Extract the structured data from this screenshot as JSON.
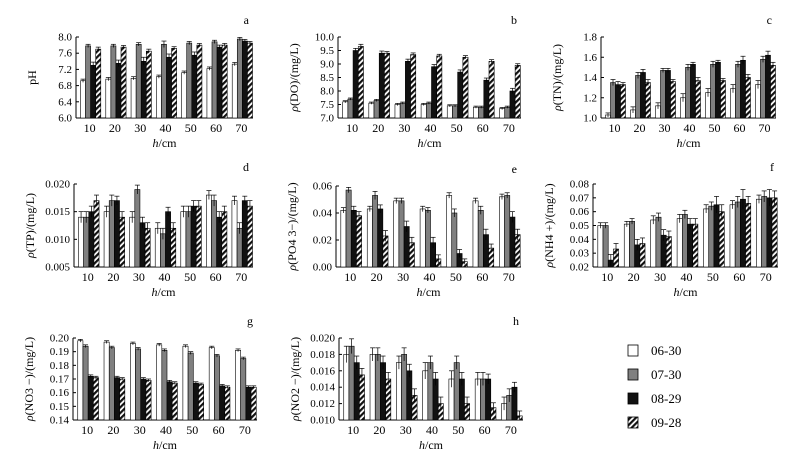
{
  "figure": {
    "legend": [
      {
        "label": "06-30",
        "pattern": "white"
      },
      {
        "label": "07-30",
        "pattern": "gray"
      },
      {
        "label": "08-29",
        "pattern": "black"
      },
      {
        "label": "09-28",
        "pattern": "hatch"
      }
    ],
    "colors": {
      "gray": "#808080",
      "black": "#111111",
      "white": "#ffffff",
      "axis": "#000000"
    }
  },
  "chart_data": [
    {
      "type": "bar",
      "panel_label": "a",
      "ylabel": "pH",
      "xlabel": "h/cm",
      "categories": [
        "10",
        "20",
        "30",
        "40",
        "50",
        "60",
        "70"
      ],
      "ylim": [
        6.0,
        8.0
      ],
      "yticks": [
        "6.0",
        "6.4",
        "6.8",
        "7.2",
        "7.6",
        "8.0"
      ],
      "series": [
        {
          "name": "06-30",
          "values": [
            6.92,
            6.96,
            6.98,
            7.02,
            7.12,
            7.22,
            7.33
          ],
          "errors": [
            0.04,
            0.04,
            0.04,
            0.04,
            0.04,
            0.04,
            0.04
          ]
        },
        {
          "name": "07-30",
          "values": [
            7.78,
            7.78,
            7.82,
            7.82,
            7.85,
            7.88,
            7.95
          ],
          "errors": [
            0.04,
            0.04,
            0.04,
            0.08,
            0.04,
            0.04,
            0.04
          ]
        },
        {
          "name": "08-29",
          "values": [
            7.3,
            7.35,
            7.4,
            7.5,
            7.55,
            7.75,
            7.9
          ],
          "errors": [
            0.08,
            0.08,
            0.1,
            0.08,
            0.08,
            0.05,
            0.04
          ]
        },
        {
          "name": "09-28",
          "values": [
            7.7,
            7.75,
            7.65,
            7.72,
            7.8,
            7.8,
            7.85
          ],
          "errors": [
            0.05,
            0.04,
            0.05,
            0.04,
            0.04,
            0.04,
            0.04
          ]
        }
      ]
    },
    {
      "type": "bar",
      "panel_label": "b",
      "ylabel": "ρ(DO)/(mg/L)",
      "xlabel": "h/cm",
      "categories": [
        "10",
        "20",
        "30",
        "40",
        "50",
        "60",
        "70"
      ],
      "ylim": [
        7.0,
        10.0
      ],
      "yticks": [
        "7.0",
        "7.5",
        "8.0",
        "8.5",
        "9.0",
        "9.5",
        "10.0"
      ],
      "series": [
        {
          "name": "06-30",
          "values": [
            7.6,
            7.55,
            7.5,
            7.5,
            7.45,
            7.4,
            7.35
          ],
          "errors": [
            0.04,
            0.04,
            0.04,
            0.04,
            0.04,
            0.04,
            0.04
          ]
        },
        {
          "name": "07-30",
          "values": [
            7.7,
            7.65,
            7.55,
            7.55,
            7.45,
            7.4,
            7.4
          ],
          "errors": [
            0.04,
            0.04,
            0.04,
            0.04,
            0.04,
            0.04,
            0.04
          ]
        },
        {
          "name": "08-29",
          "values": [
            9.5,
            9.4,
            9.1,
            8.9,
            8.7,
            8.4,
            8.0
          ],
          "errors": [
            0.08,
            0.08,
            0.08,
            0.08,
            0.08,
            0.08,
            0.1
          ]
        },
        {
          "name": "09-28",
          "values": [
            9.65,
            9.4,
            9.35,
            9.3,
            9.25,
            9.1,
            8.95
          ],
          "errors": [
            0.08,
            0.06,
            0.06,
            0.06,
            0.06,
            0.06,
            0.06
          ]
        }
      ]
    },
    {
      "type": "bar",
      "panel_label": "c",
      "ylabel": "ρ(TN)/(mg/L)",
      "xlabel": "h/cm",
      "categories": [
        "10",
        "20",
        "30",
        "40",
        "50",
        "60",
        "70"
      ],
      "ylim": [
        1.0,
        1.8
      ],
      "yticks": [
        "1.0",
        "1.2",
        "1.4",
        "1.6",
        "1.8"
      ],
      "series": [
        {
          "name": "06-30",
          "values": [
            1.03,
            1.08,
            1.12,
            1.2,
            1.25,
            1.29,
            1.33
          ],
          "errors": [
            0.02,
            0.03,
            0.03,
            0.04,
            0.04,
            0.04,
            0.04
          ]
        },
        {
          "name": "07-30",
          "values": [
            1.35,
            1.42,
            1.47,
            1.5,
            1.53,
            1.53,
            1.58
          ],
          "errors": [
            0.03,
            0.03,
            0.02,
            0.03,
            0.03,
            0.03,
            0.03
          ]
        },
        {
          "name": "08-29",
          "values": [
            1.33,
            1.45,
            1.47,
            1.53,
            1.55,
            1.57,
            1.62
          ],
          "errors": [
            0.03,
            0.03,
            0.02,
            0.02,
            0.02,
            0.04,
            0.04
          ]
        },
        {
          "name": "09-28",
          "values": [
            1.33,
            1.35,
            1.36,
            1.37,
            1.37,
            1.4,
            1.52
          ],
          "errors": [
            0.02,
            0.03,
            0.02,
            0.03,
            0.02,
            0.03,
            0.03
          ]
        }
      ]
    },
    {
      "type": "bar",
      "panel_label": "d",
      "ylabel": "ρ(TP)/(mg/L)",
      "xlabel": "h/cm",
      "categories": [
        "10",
        "20",
        "30",
        "40",
        "50",
        "60",
        "70"
      ],
      "ylim": [
        0.005,
        0.02
      ],
      "yticks": [
        "0.005",
        "0.010",
        "0.015",
        "0.020"
      ],
      "series": [
        {
          "name": "06-30",
          "values": [
            0.014,
            0.015,
            0.014,
            0.012,
            0.015,
            0.018,
            0.017
          ],
          "errors": [
            0.001,
            0.001,
            0.001,
            0.001,
            0.001,
            0.0008,
            0.0008
          ]
        },
        {
          "name": "07-30",
          "values": [
            0.014,
            0.017,
            0.019,
            0.011,
            0.015,
            0.017,
            0.012
          ],
          "errors": [
            0.001,
            0.001,
            0.0008,
            0.001,
            0.001,
            0.001,
            0.001
          ]
        },
        {
          "name": "08-29",
          "values": [
            0.015,
            0.017,
            0.013,
            0.015,
            0.016,
            0.014,
            0.017
          ],
          "errors": [
            0.001,
            0.0008,
            0.001,
            0.0008,
            0.001,
            0.001,
            0.0008
          ]
        },
        {
          "name": "09-28",
          "values": [
            0.017,
            0.014,
            0.012,
            0.012,
            0.016,
            0.015,
            0.016
          ],
          "errors": [
            0.001,
            0.001,
            0.001,
            0.001,
            0.001,
            0.001,
            0.001
          ]
        }
      ]
    },
    {
      "type": "bar",
      "panel_label": "e",
      "ylabel": "ρ(PO4 3−)/(mg/L)",
      "xlabel": "h/cm",
      "categories": [
        "10",
        "20",
        "30",
        "40",
        "50",
        "60",
        "70"
      ],
      "ylim": [
        0.0,
        0.06
      ],
      "yticks": [
        "0.00",
        "0.02",
        "0.04",
        "0.06"
      ],
      "series": [
        {
          "name": "06-30",
          "values": [
            0.042,
            0.043,
            0.049,
            0.043,
            0.053,
            0.049,
            0.052
          ],
          "errors": [
            0.002,
            0.002,
            0.002,
            0.002,
            0.002,
            0.002,
            0.002
          ]
        },
        {
          "name": "07-30",
          "values": [
            0.057,
            0.053,
            0.049,
            0.042,
            0.04,
            0.042,
            0.053
          ],
          "errors": [
            0.002,
            0.003,
            0.002,
            0.002,
            0.003,
            0.003,
            0.002
          ]
        },
        {
          "name": "08-29",
          "values": [
            0.042,
            0.043,
            0.03,
            0.018,
            0.01,
            0.024,
            0.037
          ],
          "errors": [
            0.003,
            0.003,
            0.004,
            0.004,
            0.003,
            0.004,
            0.004
          ]
        },
        {
          "name": "09-28",
          "values": [
            0.038,
            0.023,
            0.018,
            0.006,
            0.004,
            0.014,
            0.024
          ],
          "errors": [
            0.003,
            0.004,
            0.004,
            0.003,
            0.002,
            0.003,
            0.004
          ]
        }
      ]
    },
    {
      "type": "bar",
      "panel_label": "f",
      "ylabel": "ρ(NH4 +)/(mg/L)",
      "xlabel": "h/cm",
      "categories": [
        "10",
        "20",
        "30",
        "40",
        "50",
        "60",
        "70"
      ],
      "ylim": [
        0.02,
        0.08
      ],
      "yticks": [
        "0.02",
        "0.03",
        "0.04",
        "0.05",
        "0.06",
        "0.07",
        "0.08"
      ],
      "series": [
        {
          "name": "06-30",
          "values": [
            0.05,
            0.051,
            0.054,
            0.055,
            0.062,
            0.065,
            0.069
          ],
          "errors": [
            0.002,
            0.002,
            0.003,
            0.003,
            0.003,
            0.003,
            0.003
          ]
        },
        {
          "name": "07-30",
          "values": [
            0.05,
            0.053,
            0.056,
            0.058,
            0.064,
            0.067,
            0.071
          ],
          "errors": [
            0.002,
            0.002,
            0.003,
            0.003,
            0.003,
            0.004,
            0.004
          ]
        },
        {
          "name": "08-29",
          "values": [
            0.025,
            0.036,
            0.043,
            0.051,
            0.065,
            0.069,
            0.07
          ],
          "errors": [
            0.004,
            0.004,
            0.004,
            0.004,
            0.006,
            0.007,
            0.006
          ]
        },
        {
          "name": "09-28",
          "values": [
            0.033,
            0.037,
            0.042,
            0.051,
            0.06,
            0.066,
            0.07
          ],
          "errors": [
            0.004,
            0.004,
            0.004,
            0.004,
            0.005,
            0.005,
            0.005
          ]
        }
      ]
    },
    {
      "type": "bar",
      "panel_label": "g",
      "ylabel": "ρ(NO3 −)/(mg/L)",
      "xlabel": "h/cm",
      "categories": [
        "10",
        "20",
        "30",
        "40",
        "50",
        "60",
        "70"
      ],
      "ylim": [
        0.14,
        0.2
      ],
      "yticks": [
        "0.14",
        "0.15",
        "0.16",
        "0.17",
        "0.18",
        "0.19",
        "0.20"
      ],
      "series": [
        {
          "name": "06-30",
          "values": [
            0.198,
            0.197,
            0.196,
            0.195,
            0.194,
            0.193,
            0.191
          ],
          "errors": [
            0.001,
            0.001,
            0.001,
            0.001,
            0.001,
            0.001,
            0.001
          ]
        },
        {
          "name": "07-30",
          "values": [
            0.194,
            0.193,
            0.192,
            0.191,
            0.189,
            0.187,
            0.185
          ],
          "errors": [
            0.001,
            0.001,
            0.001,
            0.001,
            0.001,
            0.001,
            0.001
          ]
        },
        {
          "name": "08-29",
          "values": [
            0.172,
            0.171,
            0.17,
            0.168,
            0.167,
            0.165,
            0.164
          ],
          "errors": [
            0.001,
            0.001,
            0.001,
            0.001,
            0.001,
            0.001,
            0.001
          ]
        },
        {
          "name": "09-28",
          "values": [
            0.171,
            0.17,
            0.169,
            0.167,
            0.166,
            0.164,
            0.164
          ],
          "errors": [
            0.001,
            0.001,
            0.001,
            0.001,
            0.001,
            0.001,
            0.001
          ]
        }
      ]
    },
    {
      "type": "bar",
      "panel_label": "h",
      "ylabel": "ρ(NO2 −)/(mg/L)",
      "xlabel": "h/cm",
      "categories": [
        "10",
        "20",
        "30",
        "40",
        "50",
        "60",
        "70"
      ],
      "ylim": [
        0.01,
        0.02
      ],
      "yticks": [
        "0.010",
        "0.012",
        "0.014",
        "0.016",
        "0.018",
        "0.020"
      ],
      "series": [
        {
          "name": "06-30",
          "values": [
            0.018,
            0.018,
            0.017,
            0.016,
            0.015,
            0.015,
            0.012
          ],
          "errors": [
            0.001,
            0.0008,
            0.0008,
            0.001,
            0.001,
            0.0008,
            0.0008
          ]
        },
        {
          "name": "07-30",
          "values": [
            0.019,
            0.018,
            0.018,
            0.017,
            0.017,
            0.015,
            0.013
          ],
          "errors": [
            0.0009,
            0.0008,
            0.0008,
            0.0008,
            0.0008,
            0.0008,
            0.0008
          ]
        },
        {
          "name": "08-29",
          "values": [
            0.017,
            0.017,
            0.016,
            0.015,
            0.015,
            0.015,
            0.014
          ],
          "errors": [
            0.0008,
            0.0008,
            0.0008,
            0.0008,
            0.0008,
            0.0006,
            0.0006
          ]
        },
        {
          "name": "09-28",
          "values": [
            0.0155,
            0.015,
            0.013,
            0.012,
            0.012,
            0.0115,
            0.0105
          ],
          "errors": [
            0.0008,
            0.0008,
            0.0008,
            0.0008,
            0.0008,
            0.0006,
            0.0006
          ]
        }
      ]
    }
  ]
}
